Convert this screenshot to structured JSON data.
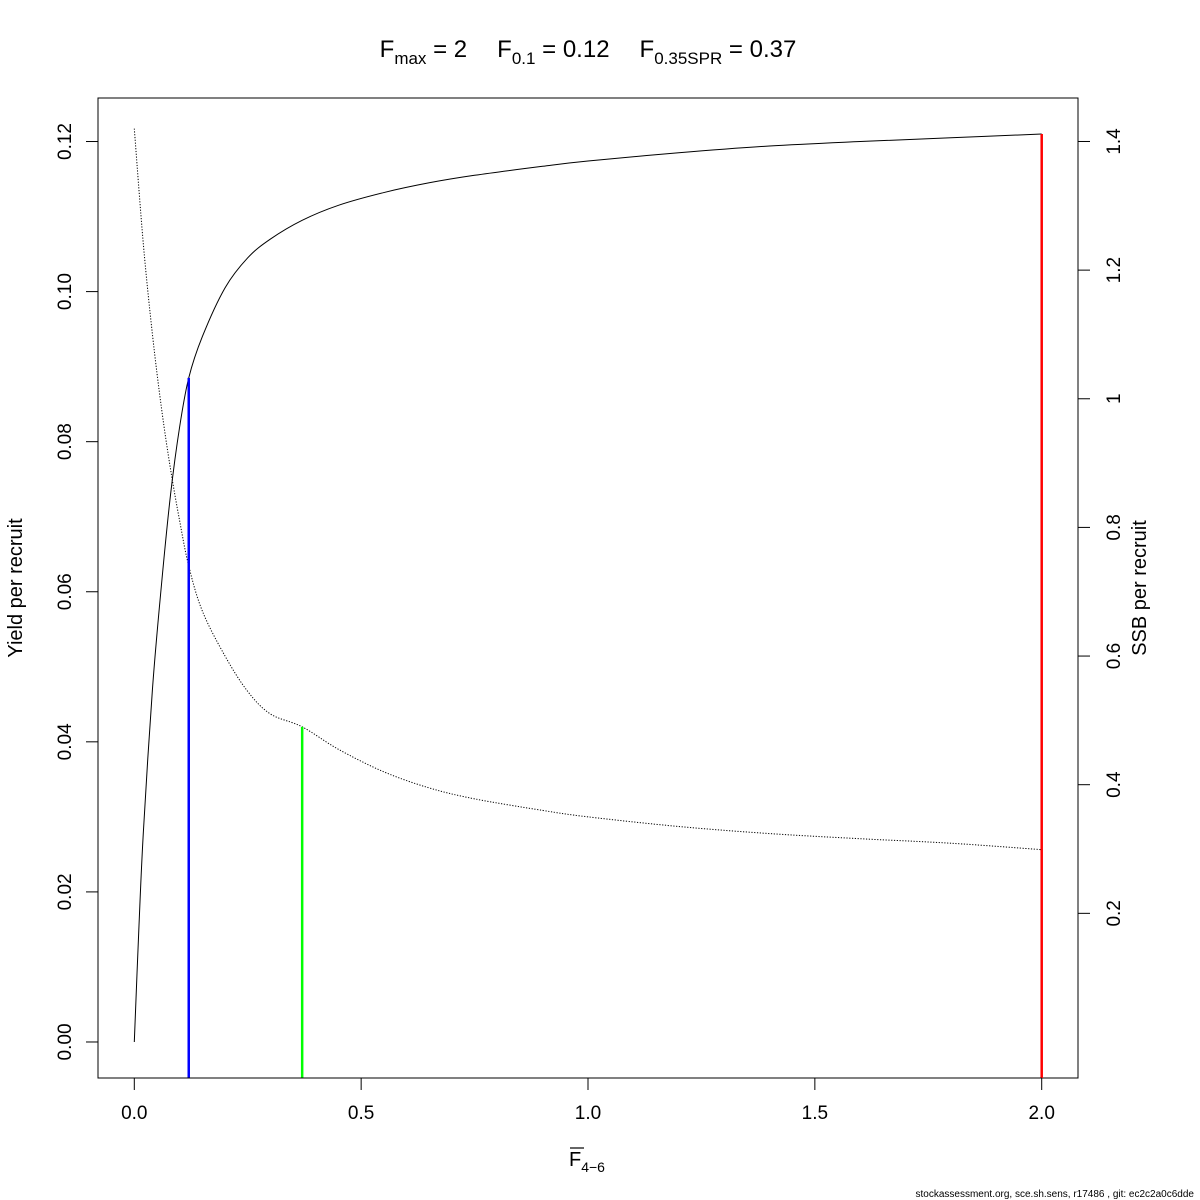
{
  "chart_data": {
    "type": "line",
    "title": {
      "fmax": {
        "sym": "F",
        "sub": "max",
        "value": "2"
      },
      "f01": {
        "sym": "F",
        "sub": "0.1",
        "value": "0.12"
      },
      "fspr": {
        "sym": "F",
        "sub": "0.35SPR",
        "value": "0.37"
      }
    },
    "xlabel": {
      "sym": "F",
      "sub": "4−6"
    },
    "ylabel": "Yield per recruit",
    "y2label": "SSB per recruit",
    "xlim": [
      -0.08,
      2.08
    ],
    "ylim": [
      -0.0048,
      0.1258
    ],
    "y2lim": [
      -0.056,
      1.4676
    ],
    "xticks": [
      "0.0",
      "0.5",
      "1.0",
      "1.5",
      "2.0"
    ],
    "yticks": [
      "0.00",
      "0.02",
      "0.04",
      "0.06",
      "0.08",
      "0.10",
      "0.12"
    ],
    "y2ticks": [
      "0.2",
      "0.4",
      "0.6",
      "0.8",
      "1",
      "1.2",
      "1.4"
    ],
    "grid": false,
    "legend": "none",
    "series": [
      {
        "axis": "left",
        "style": "solid",
        "x": [
          0,
          0.01,
          0.02,
          0.04,
          0.06,
          0.08,
          0.1,
          0.12,
          0.15,
          0.2,
          0.25,
          0.3,
          0.37,
          0.45,
          0.55,
          0.65,
          0.75,
          0.9,
          1.0,
          1.2,
          1.4,
          1.6,
          1.8,
          2.0
        ],
        "y": [
          0,
          0.015,
          0.028,
          0.047,
          0.061,
          0.073,
          0.082,
          0.0885,
          0.094,
          0.1005,
          0.1045,
          0.107,
          0.1095,
          0.1115,
          0.1132,
          0.1145,
          0.1155,
          0.1167,
          0.1174,
          0.1185,
          0.1194,
          0.12,
          0.1205,
          0.121
        ]
      },
      {
        "axis": "right",
        "style": "dotted",
        "x": [
          0,
          0.02,
          0.04,
          0.06,
          0.08,
          0.1,
          0.12,
          0.15,
          0.2,
          0.25,
          0.3,
          0.37,
          0.45,
          0.55,
          0.65,
          0.75,
          0.9,
          1.0,
          1.2,
          1.4,
          1.6,
          1.8,
          2.0
        ],
        "y": [
          1.42,
          1.24,
          1.1,
          0.985,
          0.89,
          0.81,
          0.74,
          0.67,
          0.6,
          0.545,
          0.51,
          0.49,
          0.455,
          0.42,
          0.395,
          0.378,
          0.36,
          0.35,
          0.335,
          0.324,
          0.316,
          0.309,
          0.299
        ]
      }
    ],
    "reference_lines": [
      {
        "name": "F0.1",
        "x": 0.12,
        "y": 0.0885,
        "color": "#0000ff"
      },
      {
        "name": "F0.35SPR",
        "x": 0.37,
        "y": 0.042,
        "color": "#00ff00"
      },
      {
        "name": "Fmax",
        "x": 2.0,
        "y": 0.121,
        "color": "#ff0000"
      }
    ]
  },
  "footer": "stockassessment.org, sce.sh.sens, r17486 , git: ec2c2a0c6dde"
}
